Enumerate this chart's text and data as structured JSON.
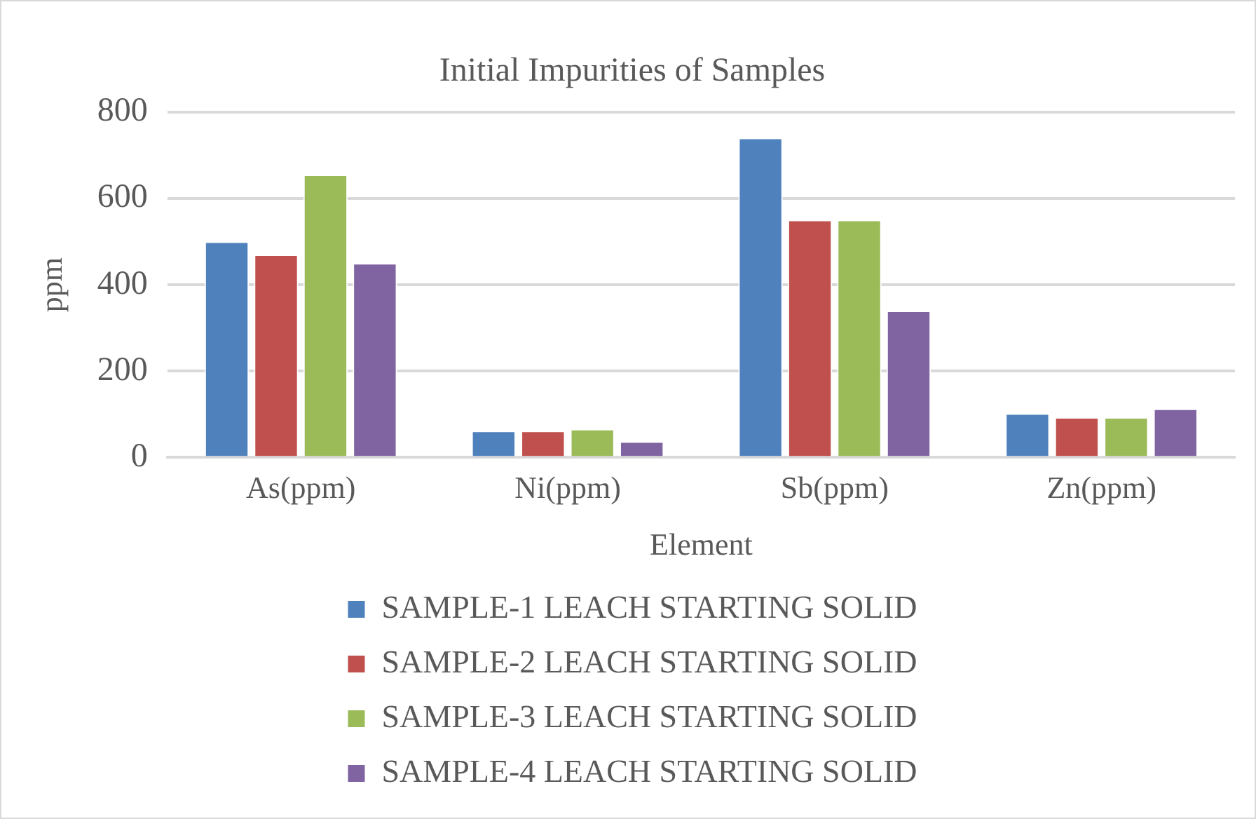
{
  "chart_data": {
    "type": "bar",
    "title": "Initial Impurities of Samples",
    "xlabel": "Element",
    "ylabel": "ppm",
    "categories": [
      "As(ppm)",
      "Ni(ppm)",
      "Sb(ppm)",
      "Zn(ppm)"
    ],
    "series": [
      {
        "name": "SAMPLE-1 LEACH STARTING SOLID",
        "color": "#4f81bd",
        "values": [
          500,
          62,
          740,
          102
        ]
      },
      {
        "name": "SAMPLE-2 LEACH STARTING SOLID",
        "color": "#c0504d",
        "values": [
          470,
          62,
          550,
          93
        ]
      },
      {
        "name": "SAMPLE-3 LEACH STARTING SOLID",
        "color": "#9bbb59",
        "values": [
          655,
          66,
          550,
          93
        ]
      },
      {
        "name": "SAMPLE-4 LEACH STARTING SOLID",
        "color": "#8064a2",
        "values": [
          450,
          37,
          340,
          113
        ]
      }
    ],
    "ylim": [
      0,
      800
    ],
    "yticks": [
      0,
      200,
      400,
      600,
      800
    ],
    "grid": "y",
    "legend": "bottom"
  }
}
